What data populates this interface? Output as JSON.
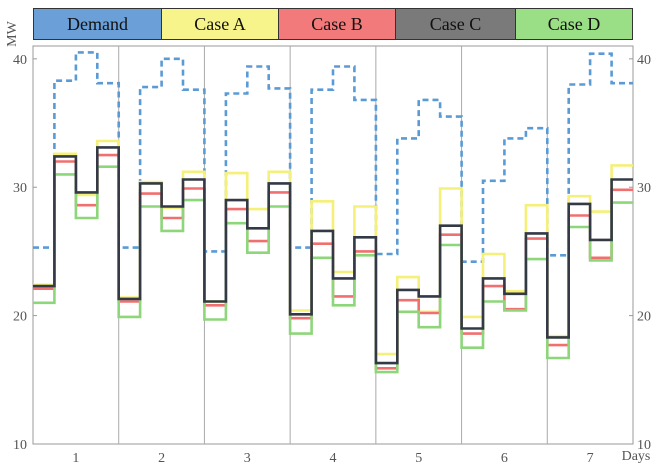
{
  "chart_data": {
    "type": "line",
    "step": true,
    "ylabel": "MW",
    "xlabel": "Days",
    "ylim": [
      10,
      41
    ],
    "yticks": [
      10,
      20,
      30,
      40
    ],
    "xlim": [
      0.5,
      7.5
    ],
    "days": [
      "1",
      "2",
      "3",
      "4",
      "5",
      "6",
      "7"
    ],
    "grid": false,
    "legend_position": "top",
    "series": [
      {
        "name": "Demand",
        "color": "#5b9bd5",
        "dashed": true,
        "values": [
          25.3,
          38.3,
          40.5,
          38.1,
          25.3,
          37.8,
          40.0,
          37.6,
          25.0,
          37.3,
          39.4,
          37.7,
          25.3,
          37.6,
          39.4,
          36.8,
          24.8,
          33.8,
          36.8,
          35.5,
          24.2,
          30.5,
          33.8,
          34.6,
          24.7,
          38.0,
          40.4,
          38.1
        ]
      },
      {
        "name": "Case A",
        "color": "#f5f07a",
        "dashed": false,
        "values": [
          22.4,
          32.6,
          29.4,
          33.6,
          21.4,
          30.4,
          28.4,
          31.2,
          21.1,
          31.1,
          28.3,
          31.2,
          20.4,
          28.9,
          23.4,
          28.5,
          17.0,
          23.0,
          20.3,
          29.9,
          19.9,
          24.8,
          21.9,
          28.6,
          18.4,
          29.3,
          28.1,
          31.7
        ]
      },
      {
        "name": "Case B",
        "color": "#f07070",
        "dashed": false,
        "values": [
          22.1,
          32.0,
          28.6,
          32.5,
          21.1,
          29.5,
          27.6,
          29.9,
          20.8,
          28.3,
          25.8,
          29.6,
          19.8,
          25.6,
          21.5,
          25.0,
          15.9,
          21.2,
          20.2,
          26.3,
          18.6,
          22.3,
          20.5,
          26.0,
          17.7,
          27.8,
          24.5,
          29.8
        ]
      },
      {
        "name": "Case C",
        "color": "#333a45",
        "dashed": false,
        "values": [
          22.3,
          32.4,
          29.6,
          33.1,
          21.3,
          30.3,
          28.5,
          30.6,
          21.1,
          29.0,
          26.8,
          30.3,
          20.1,
          26.6,
          22.9,
          26.1,
          16.3,
          22.0,
          21.5,
          27.0,
          19.0,
          22.9,
          21.7,
          26.4,
          18.3,
          28.7,
          25.9,
          30.6
        ]
      },
      {
        "name": "Case D",
        "color": "#8dd67a",
        "dashed": false,
        "values": [
          21.0,
          31.0,
          27.6,
          31.6,
          19.9,
          28.5,
          26.6,
          29.0,
          19.7,
          27.2,
          24.9,
          28.5,
          18.6,
          24.5,
          20.8,
          24.7,
          15.6,
          20.3,
          19.1,
          25.5,
          17.5,
          21.1,
          20.4,
          24.4,
          16.7,
          26.9,
          24.3,
          28.8
        ]
      }
    ]
  },
  "legend": [
    {
      "label": "Demand",
      "color": "#6a9fd8"
    },
    {
      "label": "Case A",
      "color": "#f7f48c"
    },
    {
      "label": "Case B",
      "color": "#f27a7a"
    },
    {
      "label": "Case C",
      "color": "#7a7a7a"
    },
    {
      "label": "Case D",
      "color": "#9ade85"
    }
  ]
}
